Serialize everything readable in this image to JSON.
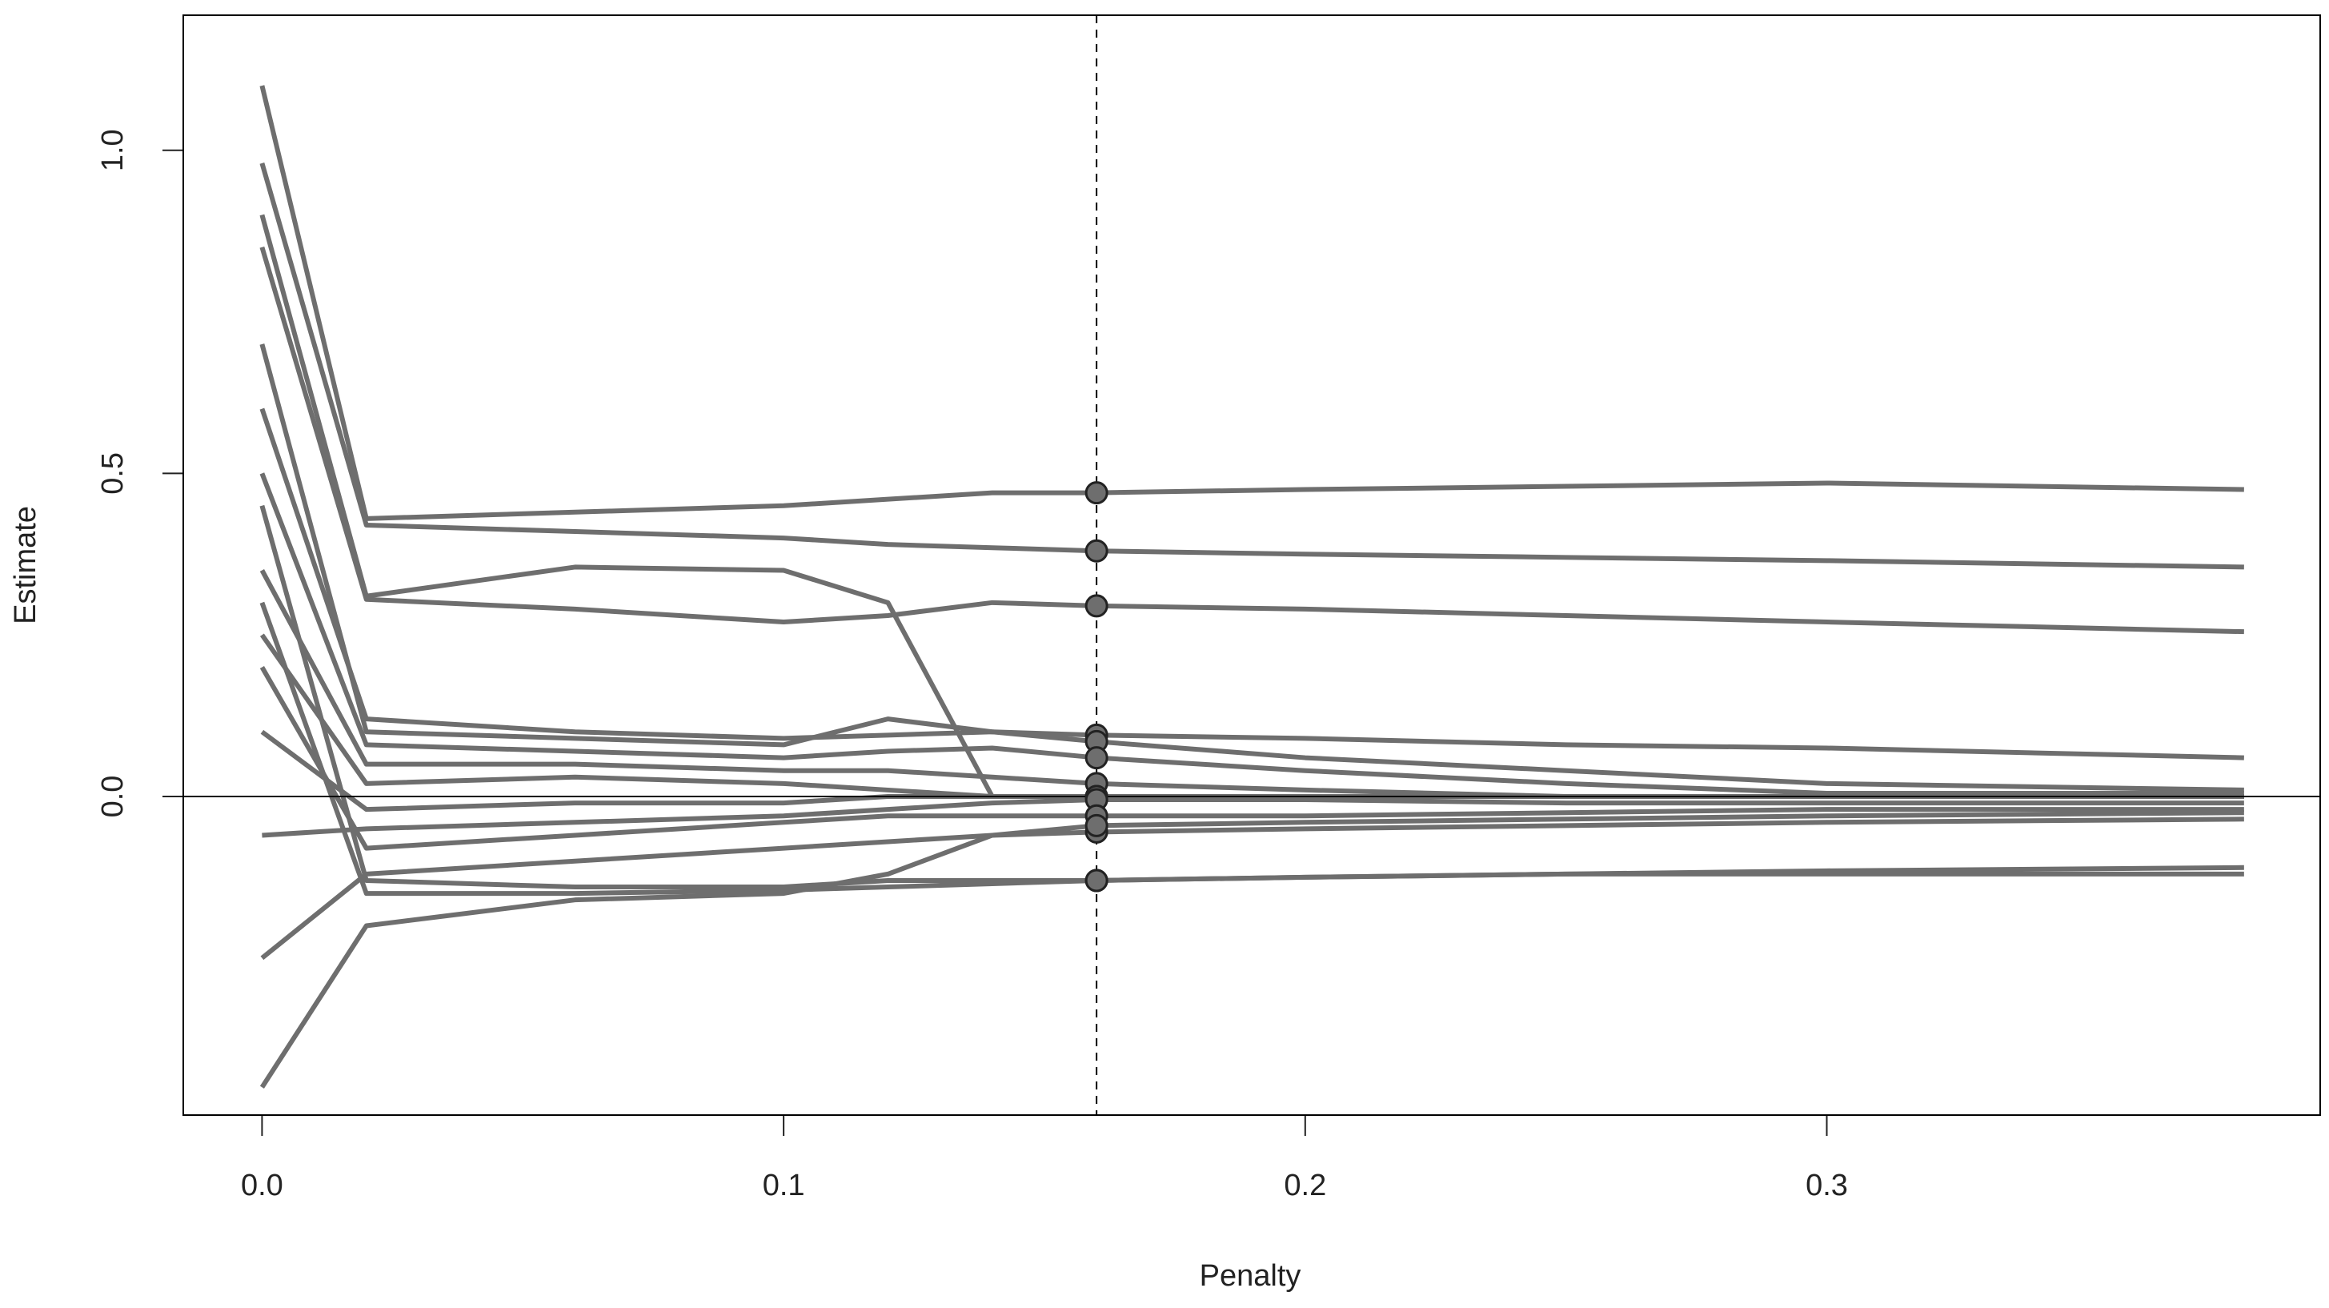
{
  "chart_data": {
    "type": "line",
    "xlabel": "Penalty",
    "ylabel": "Estimate",
    "color": "#6e6e6e",
    "x": [
      0,
      0.02,
      0.06,
      0.1,
      0.12,
      0.14,
      0.16,
      0.2,
      0.25,
      0.3,
      0.38
    ],
    "series": [
      {
        "values": [
          1.1,
          0.43,
          0.44,
          0.45,
          0.46,
          0.47,
          0.47,
          0.475,
          0.48,
          0.485,
          0.475
        ]
      },
      {
        "values": [
          0.98,
          0.42,
          0.41,
          0.4,
          0.39,
          0.385,
          0.38,
          0.375,
          0.37,
          0.365,
          0.355
        ]
      },
      {
        "values": [
          0.9,
          0.31,
          0.355,
          0.35,
          0.3,
          0.0,
          0.0,
          0.0,
          0.0,
          0.0,
          0.0
        ]
      },
      {
        "values": [
          0.85,
          0.305,
          0.29,
          0.27,
          0.28,
          0.3,
          0.295,
          0.29,
          0.28,
          0.27,
          0.255
        ]
      },
      {
        "values": [
          0.6,
          0.12,
          0.1,
          0.09,
          0.095,
          0.1,
          0.095,
          0.09,
          0.08,
          0.075,
          0.06
        ]
      },
      {
        "values": [
          0.7,
          0.1,
          0.09,
          0.08,
          0.12,
          0.1,
          0.085,
          0.06,
          0.04,
          0.02,
          0.01
        ]
      },
      {
        "values": [
          0.5,
          0.08,
          0.07,
          0.06,
          0.07,
          0.075,
          0.06,
          0.04,
          0.02,
          0.005,
          0.005
        ]
      },
      {
        "values": [
          0.35,
          0.05,
          0.05,
          0.04,
          0.04,
          0.03,
          0.02,
          0.01,
          0.0,
          0.0,
          0.0
        ]
      },
      {
        "values": [
          0.25,
          0.02,
          0.03,
          0.02,
          0.01,
          0.0,
          0.0,
          0.0,
          0.0,
          0.0,
          0.0
        ]
      },
      {
        "values": [
          0.1,
          -0.02,
          -0.01,
          -0.01,
          0.0,
          0.0,
          0.0,
          0.0,
          0.0,
          0.0,
          0.0
        ]
      },
      {
        "values": [
          -0.06,
          -0.05,
          -0.04,
          -0.03,
          -0.02,
          -0.01,
          -0.005,
          -0.005,
          -0.01,
          -0.01,
          -0.01
        ]
      },
      {
        "values": [
          0.2,
          -0.08,
          -0.06,
          -0.04,
          -0.03,
          -0.03,
          -0.03,
          -0.03,
          -0.025,
          -0.02,
          -0.02
        ]
      },
      {
        "values": [
          -0.25,
          -0.12,
          -0.1,
          -0.08,
          -0.07,
          -0.06,
          -0.055,
          -0.05,
          -0.045,
          -0.04,
          -0.035
        ]
      },
      {
        "values": [
          -0.45,
          -0.2,
          -0.16,
          -0.15,
          -0.12,
          -0.06,
          -0.045,
          -0.04,
          -0.035,
          -0.03,
          -0.025
        ]
      },
      {
        "values": [
          0.3,
          -0.15,
          -0.15,
          -0.145,
          -0.14,
          -0.135,
          -0.13,
          -0.125,
          -0.12,
          -0.115,
          -0.11
        ]
      },
      {
        "values": [
          0.45,
          -0.13,
          -0.14,
          -0.14,
          -0.13,
          -0.13,
          -0.13,
          -0.125,
          -0.12,
          -0.12,
          -0.12
        ]
      }
    ],
    "vline": 0.16,
    "hline": 0,
    "xlim": [
      -0.0151,
      0.3946
    ],
    "ylim": [
      -0.493,
      1.209
    ],
    "xticks": [
      {
        "value": 0,
        "label": "0.0"
      },
      0.1,
      0.2,
      0.3
    ],
    "yticks": [
      {
        "value": 0,
        "label": "0.0"
      },
      0.5,
      {
        "value": 1,
        "label": "1.0"
      }
    ],
    "grid": false
  }
}
